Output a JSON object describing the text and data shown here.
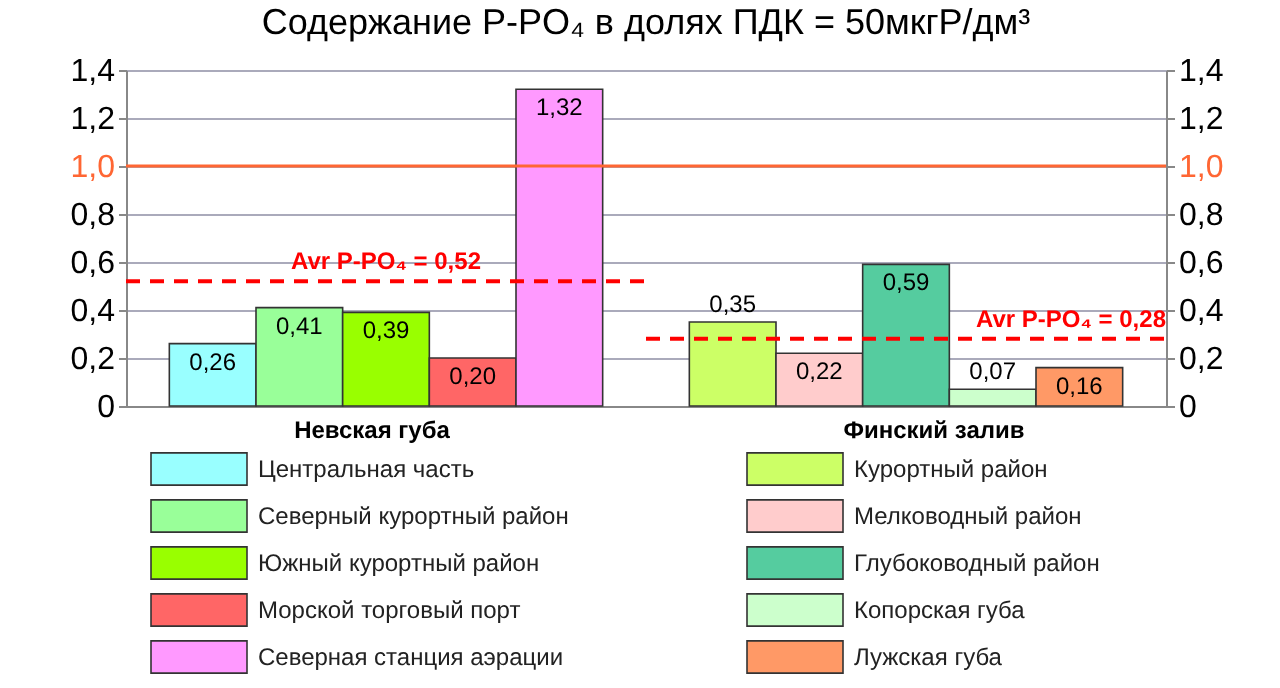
{
  "chart_data": {
    "type": "bar",
    "title": "Содержание P-PO₄ в долях ПДК = 50мкгР/дм³",
    "categories": [
      null,
      null,
      null,
      null,
      null,
      null,
      null,
      null,
      null,
      null,
      null
    ],
    "series": [
      {
        "name": "Центральная часть",
        "color": "#99ffff",
        "values": [
          0.26,
          null,
          null,
          null,
          null,
          null,
          null,
          null,
          null,
          null,
          null
        ],
        "value_labels": [
          "0,26",
          null,
          null,
          null,
          null,
          null,
          null,
          null,
          null,
          null,
          null
        ]
      },
      {
        "name": "Северный курортный район",
        "color": "#99ff99",
        "values": [
          null,
          0.41,
          null,
          null,
          null,
          null,
          null,
          null,
          null,
          null,
          null
        ],
        "value_labels": [
          null,
          "0,41",
          null,
          null,
          null,
          null,
          null,
          null,
          null,
          null,
          null
        ]
      },
      {
        "name": "Южный курортный район",
        "color": "#99ff00",
        "values": [
          null,
          null,
          0.39,
          null,
          null,
          null,
          null,
          null,
          null,
          null,
          null
        ],
        "value_labels": [
          null,
          null,
          "0,39",
          null,
          null,
          null,
          null,
          null,
          null,
          null,
          null
        ]
      },
      {
        "name": "Морской торговый порт",
        "color": "#ff6666",
        "values": [
          null,
          null,
          null,
          0.2,
          null,
          null,
          null,
          null,
          null,
          null,
          null
        ],
        "value_labels": [
          null,
          null,
          null,
          "0,20",
          null,
          null,
          null,
          null,
          null,
          null,
          null
        ]
      },
      {
        "name": "Северная станция аэрации",
        "color": "#ff99ff",
        "values": [
          null,
          null,
          null,
          null,
          1.32,
          null,
          null,
          null,
          null,
          null,
          null
        ],
        "value_labels": [
          null,
          null,
          null,
          null,
          "1,32",
          null,
          null,
          null,
          null,
          null,
          null
        ]
      },
      {
        "name": "Курортный район",
        "color": "#ccff66",
        "values": [
          null,
          null,
          null,
          null,
          null,
          null,
          0.35,
          null,
          null,
          null,
          null
        ],
        "value_labels": [
          null,
          null,
          null,
          null,
          null,
          null,
          "0,35",
          null,
          null,
          null,
          null
        ]
      },
      {
        "name": "Мелководный район",
        "color": "#ffcccc",
        "values": [
          null,
          null,
          null,
          null,
          null,
          null,
          null,
          0.22,
          null,
          null,
          null
        ],
        "value_labels": [
          null,
          null,
          null,
          null,
          null,
          null,
          null,
          "0,22",
          null,
          null,
          null
        ]
      },
      {
        "name": "Глубоководный район",
        "color": "#55cc9f",
        "values": [
          null,
          null,
          null,
          null,
          null,
          null,
          null,
          null,
          0.59,
          null,
          null
        ],
        "value_labels": [
          null,
          null,
          null,
          null,
          null,
          null,
          null,
          null,
          "0,59",
          null,
          null
        ]
      },
      {
        "name": "Копорская губа",
        "color": "#ccffcc",
        "values": [
          null,
          null,
          null,
          null,
          null,
          null,
          null,
          null,
          null,
          0.07,
          null
        ],
        "value_labels": [
          null,
          null,
          null,
          null,
          null,
          null,
          null,
          null,
          null,
          "0,07",
          null
        ]
      },
      {
        "name": "Лужская губа",
        "color": "#ff9966",
        "values": [
          null,
          null,
          null,
          null,
          null,
          null,
          null,
          null,
          null,
          null,
          0.16
        ],
        "value_labels": [
          null,
          null,
          null,
          null,
          null,
          null,
          null,
          null,
          null,
          null,
          "0,16"
        ]
      }
    ],
    "annotations": [
      "Невская губа",
      "Финский залив"
    ],
    "ylim": [
      0,
      1.4
    ],
    "yticks": [
      0,
      {
        "value": 0.2,
        "label": "0,2"
      },
      {
        "value": 0.4,
        "label": "0,4"
      },
      {
        "value": 0.6,
        "label": "0,6"
      },
      {
        "value": 0.8,
        "label": "0,8"
      },
      {
        "value": 1.0,
        "label": "1,0"
      },
      {
        "value": 1.2,
        "label": "1,2"
      },
      {
        "value": 1.4,
        "label": "1,4"
      }
    ],
    "y2lim": [
      0,
      1.4
    ],
    "y2ticks": [
      0,
      {
        "value": 0.2,
        "label": "0,2"
      },
      {
        "value": 0.4,
        "label": "0,4"
      },
      {
        "value": 0.6,
        "label": "0,6"
      },
      {
        "value": 0.8,
        "label": "0,8"
      },
      {
        "value": 1.0,
        "label": "1,0"
      },
      {
        "value": 1.2,
        "label": "1,2"
      },
      {
        "value": 1.4,
        "label": "1,4"
      }
    ],
    "ref_lines": [
      {
        "axis": "y",
        "value": 1.0,
        "color": "#ff6633",
        "line_style": "solid"
      },
      {
        "axis": "y",
        "value": 0.52,
        "label": "Avr P-PO₄ = 0,52",
        "color": "#ff0000",
        "line_style": "dashed"
      },
      {
        "axis": "y",
        "value": 0.28,
        "label": "Avr P-PO₄ = 0,28",
        "color": "#ff0000",
        "line_style": "dashed"
      }
    ],
    "grid": "y",
    "legend": "bottom",
    "tick_labels": "y"
  }
}
